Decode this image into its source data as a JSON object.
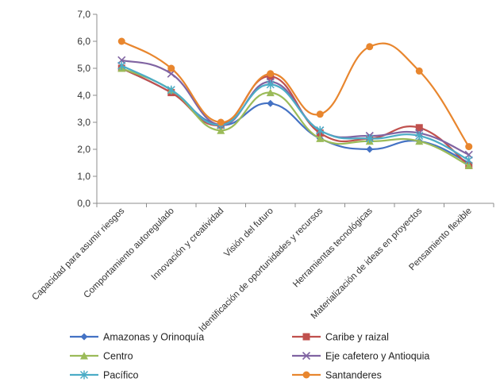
{
  "chart_data": {
    "type": "line",
    "title": "",
    "xlabel": "",
    "ylabel": "",
    "ylim": [
      0,
      7
    ],
    "yticks": [
      "0,0",
      "1,0",
      "2,0",
      "3,0",
      "4,0",
      "5,0",
      "6,0",
      "7,0"
    ],
    "grid": false,
    "legend_placement": "bottom",
    "categories": [
      "Capacidad para asumir riesgos",
      "Comportamiento autoregulado",
      "Innovación y creatividad",
      "Visión del futuro",
      "Identificación de oportunidades y recursos",
      "Herramientas tecnológicas",
      "Materialización de ideas en proyectos",
      "Pensamiento flexible"
    ],
    "series": [
      {
        "name": "Amazonas y Orinoquía",
        "color": "#4472C4",
        "marker": "diamond",
        "values": [
          5.0,
          4.1,
          2.9,
          3.7,
          2.4,
          2.0,
          2.3,
          1.5
        ]
      },
      {
        "name": "Caribe y raizal",
        "color": "#C0504D",
        "marker": "square",
        "values": [
          5.0,
          4.1,
          2.9,
          4.7,
          2.6,
          2.4,
          2.8,
          1.4
        ]
      },
      {
        "name": "Centro",
        "color": "#9BBB59",
        "marker": "triangle",
        "values": [
          5.0,
          4.2,
          2.7,
          4.1,
          2.4,
          2.3,
          2.3,
          1.4
        ]
      },
      {
        "name": "Eje cafetero y Antioquia",
        "color": "#8064A2",
        "marker": "x",
        "values": [
          5.3,
          4.8,
          2.9,
          4.5,
          2.7,
          2.5,
          2.6,
          1.8
        ]
      },
      {
        "name": "Pacífico",
        "color": "#4BACC6",
        "marker": "star",
        "values": [
          5.1,
          4.2,
          2.9,
          4.4,
          2.7,
          2.4,
          2.5,
          1.6
        ]
      },
      {
        "name": "Santanderes",
        "color": "#E8862E",
        "marker": "circle",
        "values": [
          6.0,
          5.0,
          3.0,
          4.8,
          3.3,
          5.8,
          4.9,
          2.1
        ]
      }
    ]
  }
}
